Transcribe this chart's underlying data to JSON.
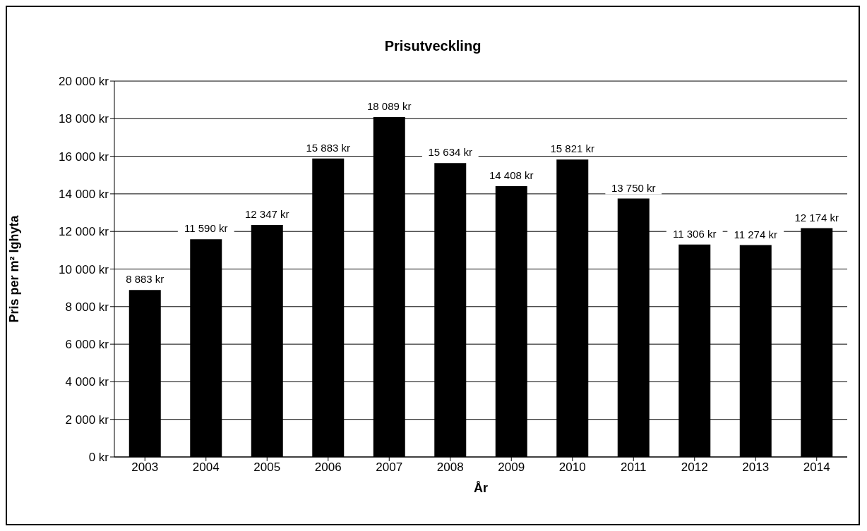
{
  "chart_data": {
    "type": "bar",
    "title": "Prisutveckling",
    "xlabel": "År",
    "ylabel": "Pris per m² lghyta",
    "categories": [
      "2003",
      "2004",
      "2005",
      "2006",
      "2007",
      "2008",
      "2009",
      "2010",
      "2011",
      "2012",
      "2013",
      "2014"
    ],
    "values": [
      8883,
      11590,
      12347,
      15883,
      18089,
      15634,
      14408,
      15821,
      13750,
      11306,
      11274,
      12174
    ],
    "value_labels": [
      "8 883 kr",
      "11 590 kr",
      "12 347 kr",
      "15 883 kr",
      "18 089 kr",
      "15 634 kr",
      "14 408 kr",
      "15 821 kr",
      "13 750 kr",
      "11 306 kr",
      "11 274 kr",
      "12 174 kr"
    ],
    "color": "#000000",
    "ylim": [
      0,
      20000
    ],
    "yticks": [
      {
        "value": 0,
        "label": "0 kr"
      },
      {
        "value": 2000,
        "label": "2 000 kr"
      },
      {
        "value": 4000,
        "label": "4 000 kr"
      },
      {
        "value": 6000,
        "label": "6 000 kr"
      },
      {
        "value": 8000,
        "label": "8 000 kr"
      },
      {
        "value": 10000,
        "label": "10 000 kr"
      },
      {
        "value": 12000,
        "label": "12 000 kr"
      },
      {
        "value": 14000,
        "label": "14 000 kr"
      },
      {
        "value": 16000,
        "label": "16 000 kr"
      },
      {
        "value": 18000,
        "label": "18 000 kr"
      },
      {
        "value": 20000,
        "label": "20 000 kr"
      }
    ],
    "grid": "y",
    "legend": false
  }
}
